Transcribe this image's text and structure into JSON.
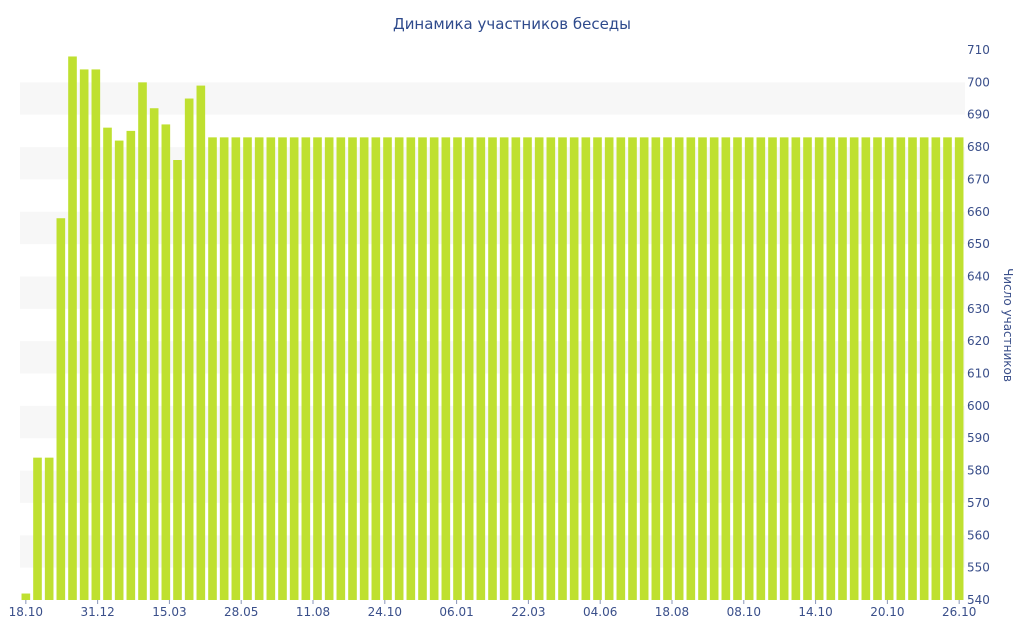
{
  "chart_data": {
    "type": "bar",
    "title": "Динамика участников беседы",
    "xlabel": "",
    "ylabel": "Число участников",
    "ylim": [
      540,
      710
    ],
    "y_ticks": [
      540,
      550,
      560,
      570,
      580,
      590,
      600,
      610,
      620,
      630,
      640,
      650,
      660,
      670,
      680,
      690,
      700,
      710
    ],
    "y_axis_side": "right",
    "x_tick_labels": [
      "18.10",
      "31.12",
      "15.03",
      "28.05",
      "11.08",
      "24.10",
      "06.01",
      "22.03",
      "04.06",
      "18.08",
      "08.10",
      "14.10",
      "20.10",
      "26.10"
    ],
    "grid": "alternating horizontal bands",
    "bar_color": "#bfe030",
    "band_color": "#f7f7f7",
    "values": [
      542,
      584,
      584,
      658,
      708,
      704,
      704,
      686,
      682,
      685,
      700,
      692,
      687,
      676,
      695,
      699,
      683,
      683,
      683,
      683,
      683,
      683,
      683,
      683,
      683,
      683,
      683,
      683,
      683,
      683,
      683,
      683,
      683,
      683,
      683,
      683,
      683,
      683,
      683,
      683,
      683,
      683,
      683,
      683,
      683,
      683,
      683,
      683,
      683,
      683,
      683,
      683,
      683,
      683,
      683,
      683,
      683,
      683,
      683,
      683,
      683,
      683,
      683,
      683,
      683,
      683,
      683,
      683,
      683,
      683,
      683,
      683,
      683,
      683,
      683,
      683,
      683,
      683,
      683,
      683,
      683
    ]
  }
}
